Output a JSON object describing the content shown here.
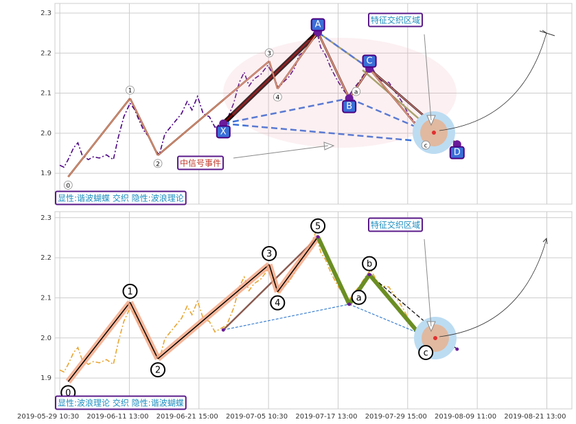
{
  "chart_data": [
    {
      "type": "line",
      "ylim": [
        1.823,
        2.324
      ],
      "yticks": [
        1.9,
        {
          "value": 2,
          "label": "2.0"
        },
        2.1,
        2.2,
        2.3
      ],
      "grid": true,
      "xlim": [
        -7,
        736
      ],
      "series": [
        {
          "color": "#4b0082",
          "x": [
            0,
            6,
            12,
            20,
            26,
            32,
            41,
            48,
            57,
            67,
            77,
            84,
            92,
            101,
            108,
            114,
            121,
            129,
            137,
            143,
            151,
            159,
            167,
            175,
            183,
            190,
            198,
            206,
            215,
            223,
            232,
            240,
            250,
            258,
            265,
            272,
            279,
            289,
            299,
            307,
            314,
            321,
            329,
            337,
            344,
            352,
            360,
            368,
            375,
            382,
            390,
            398,
            407,
            415,
            423,
            431,
            439,
            447,
            455,
            463,
            473,
            483,
            493,
            502,
            512,
            520,
            528
          ],
          "values": [
            1.92,
            1.915,
            1.934,
            1.964,
            1.976,
            1.946,
            1.934,
            1.941,
            1.938,
            1.946,
            1.934,
            1.989,
            2.041,
            2.075,
            2.058,
            2.032,
            2.006,
            1.989,
            1.958,
            1.946,
            1.998,
            2.015,
            2.032,
            2.049,
            2.079,
            2.058,
            2.092,
            2.049,
            2.041,
            2.015,
            2.024,
            2.032,
            2.075,
            2.127,
            2.152,
            2.118,
            2.135,
            2.147,
            2.17,
            2.144,
            2.113,
            2.127,
            2.14,
            2.161,
            2.195,
            2.204,
            2.23,
            2.264,
            2.214,
            2.195,
            2.161,
            2.135,
            2.109,
            2.092,
            2.113,
            2.13,
            2.152,
            2.17,
            2.144,
            2.13,
            2.127,
            2.101,
            2.075,
            2.044,
            2.024,
            2.003,
            1.998
          ]
        },
        {
          "color": "#c9703a",
          "x": [
            12,
            101,
            141,
            301,
            313,
            371,
            416,
            445,
            526
          ],
          "values": [
            1.891,
            2.087,
            1.945,
            2.18,
            2.111,
            2.252,
            2.087,
            2.161,
            1.991
          ],
          "labels": [
            "0",
            "1",
            "2",
            "3",
            "4",
            null,
            "a",
            null,
            "c"
          ]
        },
        {
          "color": "#3a6fd8",
          "x": [
            235,
            371,
            416,
            445,
            571
          ],
          "values": [
            2.024,
            2.252,
            2.087,
            2.161,
            1.972
          ],
          "labels": [
            "X",
            "A",
            "B",
            "C",
            "D"
          ]
        }
      ],
      "annotations": [
        "显性:谐波蝴蝶 交织 隐性:波浪理论",
        "特征交织区域",
        "中信号事件"
      ]
    },
    {
      "type": "line",
      "ylim": [
        1.823,
        2.315
      ],
      "yticks": [
        1.9,
        {
          "value": 2,
          "label": "2.0"
        },
        2.1,
        2.2,
        2.3
      ],
      "grid": true,
      "xlim": [
        -7,
        736
      ],
      "xticks": [
        {
          "value": 0,
          "label": "2019-05-29 10:30"
        },
        {
          "value": 100,
          "label": "2019-06-11 13:00"
        },
        {
          "value": 200,
          "label": "2019-06-21 15:00"
        },
        {
          "value": 300,
          "label": "2019-07-05 10:30"
        },
        {
          "value": 400,
          "label": "2019-07-17 13:00"
        },
        {
          "value": 500,
          "label": "2019-07-29 15:00"
        },
        {
          "value": 600,
          "label": "2019-08-09 11:00"
        },
        {
          "value": 700,
          "label": "2019-08-21 13:00"
        }
      ],
      "series": [
        {
          "color": "#e8a530",
          "x": [
            0,
            6,
            12,
            20,
            26,
            32,
            41,
            48,
            57,
            67,
            77,
            84,
            92,
            101,
            108,
            114,
            121,
            129,
            137,
            143,
            151,
            159,
            167,
            175,
            183,
            190,
            198,
            206,
            215,
            223,
            232,
            240,
            250,
            258,
            265,
            272,
            279,
            289,
            299,
            307,
            314,
            321,
            329,
            337,
            344,
            352,
            360,
            368,
            375,
            382,
            390,
            398,
            407,
            415,
            423,
            431,
            439,
            447,
            455,
            463,
            473,
            483,
            493,
            502,
            512,
            520,
            528
          ],
          "values": [
            1.92,
            1.915,
            1.934,
            1.964,
            1.976,
            1.946,
            1.934,
            1.941,
            1.938,
            1.946,
            1.934,
            1.989,
            2.041,
            2.075,
            2.058,
            2.032,
            2.006,
            1.989,
            1.958,
            1.946,
            1.998,
            2.015,
            2.032,
            2.049,
            2.079,
            2.058,
            2.092,
            2.049,
            2.041,
            2.015,
            2.024,
            2.032,
            2.075,
            2.127,
            2.152,
            2.118,
            2.135,
            2.147,
            2.17,
            2.144,
            2.113,
            2.127,
            2.14,
            2.161,
            2.195,
            2.204,
            2.23,
            2.264,
            2.214,
            2.195,
            2.161,
            2.135,
            2.109,
            2.092,
            2.113,
            2.13,
            2.152,
            2.17,
            2.144,
            2.13,
            2.127,
            2.101,
            2.075,
            2.044,
            2.024,
            2.003,
            1.998
          ]
        },
        {
          "color": "#000000",
          "x": [
            12,
            101,
            141,
            301,
            313,
            371,
            416,
            445,
            526
          ],
          "values": [
            1.891,
            2.089,
            1.948,
            2.183,
            2.115,
            2.252,
            2.084,
            2.158,
            1.991
          ],
          "labels": [
            "0",
            "1",
            "2",
            "3",
            "4",
            "5",
            "a",
            "b",
            "c"
          ]
        },
        {
          "color": "#3a7fd0",
          "x": [
            235,
            371,
            416,
            445,
            571
          ],
          "values": [
            2.02,
            2.252,
            2.084,
            2.158,
            1.972
          ]
        }
      ],
      "annotations": [
        "显性:波浪理论 交织 隐性:谐波蝴蝶",
        "特征交织区域"
      ]
    }
  ]
}
